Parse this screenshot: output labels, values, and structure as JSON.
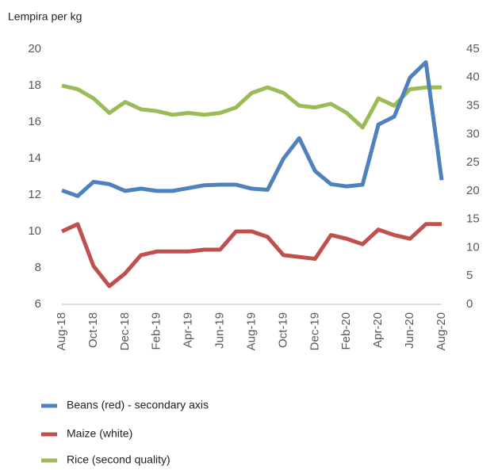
{
  "chart_data": {
    "type": "line",
    "y_axis_label": "Lempira per kg",
    "categories": [
      "Aug-18",
      null,
      "Oct-18",
      null,
      "Dec-18",
      null,
      "Feb-19",
      null,
      "Apr-19",
      null,
      "Jun-19",
      null,
      "Aug-19",
      null,
      "Oct-19",
      null,
      "Dec-19",
      null,
      "Feb-20",
      null,
      "Apr-20",
      null,
      "Jun-20",
      null,
      "Aug-20"
    ],
    "series": [
      {
        "name": "Beans (red) - secondary axis",
        "color": "#4f81bd",
        "axis": "y2",
        "values": [
          20.1,
          19.1,
          21.6,
          21.2,
          20.0,
          20.4,
          20.0,
          20.0,
          20.5,
          21.0,
          21.1,
          21.1,
          20.4,
          20.2,
          25.7,
          29.3,
          23.5,
          21.2,
          20.8,
          21.1,
          31.7,
          33.1,
          40.0,
          42.7,
          21.9
        ]
      },
      {
        "name": "Maize (white)",
        "color": "#c0504d",
        "values": [
          10.0,
          10.4,
          8.1,
          7.0,
          7.7,
          8.7,
          8.9,
          8.9,
          8.9,
          9.0,
          9.0,
          10.0,
          10.0,
          9.7,
          8.7,
          8.6,
          8.5,
          9.8,
          9.6,
          9.3,
          10.1,
          9.8,
          9.6,
          10.4,
          10.4
        ]
      },
      {
        "name": "Rice (second quality)",
        "color": "#9bbb59",
        "values": [
          18.0,
          17.8,
          17.3,
          16.5,
          17.1,
          16.7,
          16.6,
          16.4,
          16.5,
          16.4,
          16.5,
          16.8,
          17.6,
          17.9,
          17.6,
          16.9,
          16.8,
          17.0,
          16.5,
          15.7,
          17.3,
          16.9,
          17.8,
          17.9,
          17.9
        ]
      }
    ],
    "ylim": [
      6,
      20
    ],
    "yticks": [
      6,
      8,
      10,
      12,
      14,
      16,
      18,
      20
    ],
    "y2lim": [
      0,
      45
    ],
    "y2ticks": [
      0,
      5,
      10,
      15,
      20,
      25,
      30,
      35,
      40,
      45
    ],
    "grid": false,
    "legend": "bottom"
  }
}
